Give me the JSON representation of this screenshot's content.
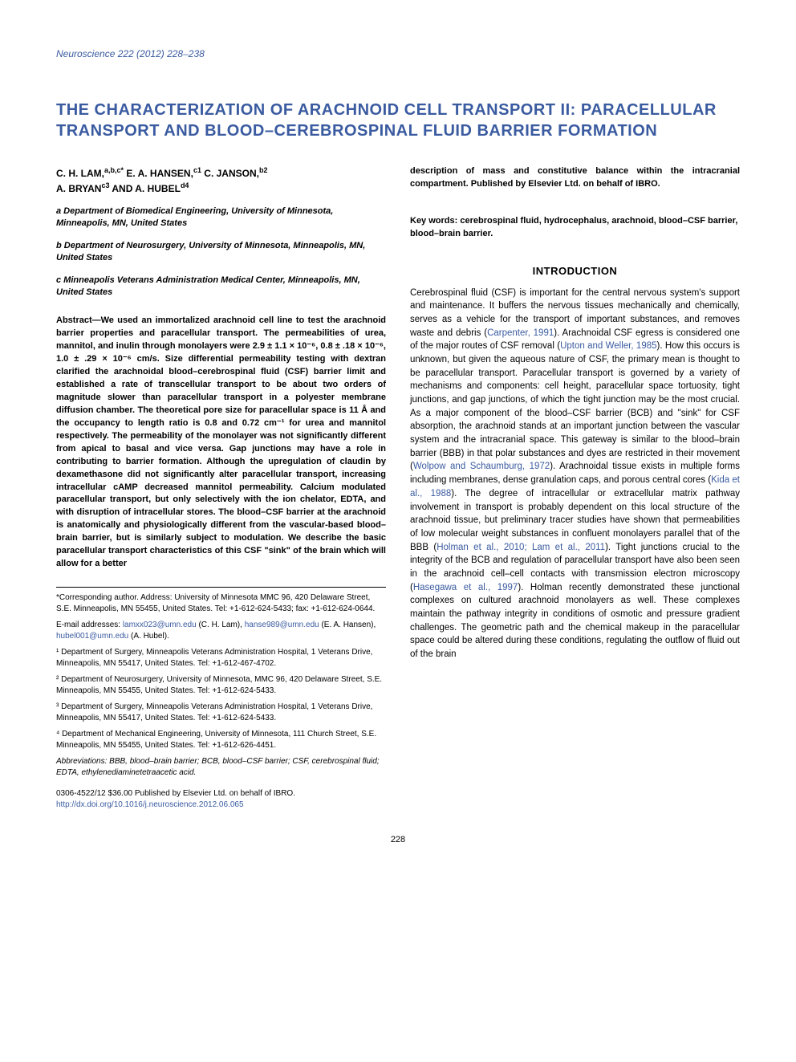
{
  "journal_ref": "Neuroscience 222 (2012) 228–238",
  "title": "THE CHARACTERIZATION OF ARACHNOID CELL TRANSPORT II: PARACELLULAR TRANSPORT AND BLOOD–CEREBROSPINAL FLUID BARRIER FORMATION",
  "authors_line1": "C. H. LAM,",
  "authors_sup1": "a,b,c*",
  "authors_line2": " E. A. HANSEN,",
  "authors_sup2": "c1",
  "authors_line3": " C. JANSON,",
  "authors_sup3": "b2",
  "authors_line4": "A. BRYAN",
  "authors_sup4": "c3",
  "authors_line5": " AND A. HUBEL",
  "authors_sup5": "d4",
  "affil_a": "a Department of Biomedical Engineering, University of Minnesota, Minneapolis, MN, United States",
  "affil_b": "b Department of Neurosurgery, University of Minnesota, Minneapolis, MN, United States",
  "affil_c": "c Minneapolis Veterans Administration Medical Center, Minneapolis, MN, United States",
  "abstract_left": "Abstract—We used an immortalized arachnoid cell line to test the arachnoid barrier properties and paracellular transport. The permeabilities of urea, mannitol, and inulin through monolayers were 2.9 ± 1.1 × 10⁻⁶, 0.8 ± .18 × 10⁻⁶, 1.0 ± .29 × 10⁻⁶ cm/s. Size differential permeability testing with dextran clarified the arachnoidal blood–cerebrospinal fluid (CSF) barrier limit and established a rate of transcellular transport to be about two orders of magnitude slower than paracellular transport in a polyester membrane diffusion chamber. The theoretical pore size for paracellular space is 11 Å and the occupancy to length ratio is 0.8 and 0.72 cm⁻¹ for urea and mannitol respectively. The permeability of the monolayer was not significantly different from apical to basal and vice versa. Gap junctions may have a role in contributing to barrier formation. Although the upregulation of claudin by dexamethasone did not significantly alter paracellular transport, increasing intracellular cAMP decreased mannitol permeability. Calcium modulated paracellular transport, but only selectively with the ion chelator, EDTA, and with disruption of intracellular stores. The blood–CSF barrier at the arachnoid is anatomically and physiologically different from the vascular-based blood–brain barrier, but is similarly subject to modulation. We describe the basic paracellular transport characteristics of this CSF \"sink\" of the brain which will allow for a better",
  "abstract_right": "description of mass and constitutive balance within the intracranial compartment. Published by Elsevier Ltd. on behalf of IBRO.",
  "keywords": "Key words: cerebrospinal fluid, hydrocephalus, arachnoid, blood–CSF barrier, blood–brain barrier.",
  "intro_heading": "INTRODUCTION",
  "intro_text_1": "Cerebrospinal fluid (CSF) is important for the central nervous system's support and maintenance. It buffers the nervous tissues mechanically and chemically, serves as a vehicle for the transport of important substances, and removes waste and debris (",
  "intro_ref_1": "Carpenter, 1991",
  "intro_text_2": "). Arachnoidal CSF egress is considered one of the major routes of CSF removal (",
  "intro_ref_2": "Upton and Weller, 1985",
  "intro_text_3": "). How this occurs is unknown, but given the aqueous nature of CSF, the primary mean is thought to be paracellular transport. Paracellular transport is governed by a variety of mechanisms and components: cell height, paracellular space tortuosity, tight junctions, and gap junctions, of which the tight junction may be the most crucial. As a major component of the blood–CSF barrier (BCB) and \"sink\" for CSF absorption, the arachnoid stands at an important junction between the vascular system and the intracranial space. This gateway is similar to the blood–brain barrier (BBB) in that polar substances and dyes are restricted in their movement (",
  "intro_ref_3": "Wolpow and Schaumburg, 1972",
  "intro_text_4": "). Arachnoidal tissue exists in multiple forms including membranes, dense granulation caps, and porous central cores (",
  "intro_ref_4": "Kida et al., 1988",
  "intro_text_5": "). The degree of intracellular or extracellular matrix pathway involvement in transport is probably dependent on this local structure of the arachnoid tissue, but preliminary tracer studies have shown that permeabilities of low molecular weight substances in confluent monolayers parallel that of the BBB (",
  "intro_ref_5": "Holman et al., 2010; Lam et al., 2011",
  "intro_text_6": "). Tight junctions crucial to the integrity of the BCB and regulation of paracellular transport have also been seen in the arachnoid cell–cell contacts with transmission electron microscopy (",
  "intro_ref_6": "Hasegawa et al., 1997",
  "intro_text_7": "). Holman recently demonstrated these junctional complexes on cultured arachnoid monolayers as well. These complexes maintain the pathway integrity in conditions of osmotic and pressure gradient challenges. The geometric path and the chemical makeup in the paracellular space could be altered during these conditions, regulating the outflow of fluid out of the brain",
  "fn_corr": "*Corresponding author. Address: University of Minnesota MMC 96, 420 Delaware Street, S.E. Minneapolis, MN 55455, United States. Tel: +1-612-624-5433; fax: +1-612-624-0644.",
  "fn_email_label": "E-mail addresses: ",
  "fn_email_1": "lamxx023@umn.edu",
  "fn_email_1_name": " (C. H. Lam), ",
  "fn_email_2": "hanse989@umn.edu",
  "fn_email_2_name": " (E. A. Hansen), ",
  "fn_email_3": "hubel001@umn.edu",
  "fn_email_3_name": " (A. Hubel).",
  "fn_1": "¹ Department of Surgery, Minneapolis Veterans Administration Hospital, 1 Veterans Drive, Minneapolis, MN 55417, United States. Tel: +1-612-467-4702.",
  "fn_2": "² Department of Neurosurgery, University of Minnesota, MMC 96, 420 Delaware Street, S.E. Minneapolis, MN 55455, United States. Tel: +1-612-624-5433.",
  "fn_3": "³ Department of Surgery, Minneapolis Veterans Administration Hospital, 1 Veterans Drive, Minneapolis, MN 55417, United States. Tel: +1-612-624-5433.",
  "fn_4": "⁴ Department of Mechanical Engineering, University of Minnesota, 111 Church Street, S.E. Minneapolis, MN 55455, United States. Tel: +1-612-626-4451.",
  "fn_abbrev": "Abbreviations: BBB, blood–brain barrier; BCB, blood–CSF barrier; CSF, cerebrospinal fluid; EDTA, ethylenediaminetetraacetic acid.",
  "doi_line1": "0306-4522/12 $36.00 Published by Elsevier Ltd. on behalf of IBRO.",
  "doi_line2": "http://dx.doi.org/10.1016/j.neuroscience.2012.06.065",
  "page_num": "228"
}
